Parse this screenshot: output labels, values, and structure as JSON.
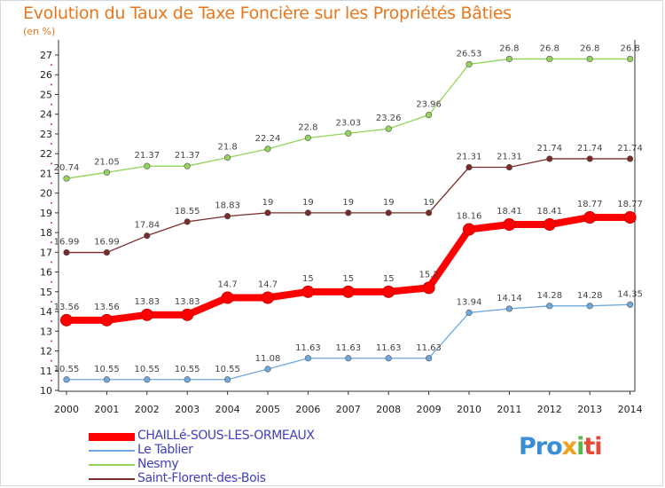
{
  "chart_data": {
    "type": "line",
    "title": "Evolution du Taux de Taxe Foncière sur les Propriétés Bâties",
    "subtitle": "(en %)",
    "x": [
      "2000",
      "2001",
      "2002",
      "2003",
      "2004",
      "2005",
      "2006",
      "2007",
      "2008",
      "2009",
      "2010",
      "2011",
      "2012",
      "2013",
      "2014"
    ],
    "yticks": [
      "10",
      "11",
      "12",
      "13",
      "14",
      "15",
      "16",
      "17",
      "18",
      "19",
      "20",
      "21",
      "22",
      "23",
      "24",
      "25",
      "26",
      "27"
    ],
    "ylim": [
      10,
      27
    ],
    "grid": false,
    "legend_position": "bottom-left",
    "series": [
      {
        "name": "CHAILLé-SOUS-LES-ORMEAUX",
        "color": "#ff0000",
        "emphasized": true,
        "values": [
          13.56,
          13.56,
          13.83,
          13.83,
          14.7,
          14.7,
          15,
          15,
          15,
          15.2,
          18.16,
          18.41,
          18.41,
          18.77,
          18.77
        ],
        "labels": [
          "13.56",
          "13.56",
          "13.83",
          "13.83",
          "14.7",
          "14.7",
          "15",
          "15",
          "15",
          "15.2",
          "18.16",
          "18.41",
          "18.41",
          "18.77",
          "18.77"
        ]
      },
      {
        "name": "Le Tablier",
        "color": "#6fa8dc",
        "emphasized": false,
        "values": [
          10.55,
          10.55,
          10.55,
          10.55,
          10.55,
          11.08,
          11.63,
          11.63,
          11.63,
          11.63,
          13.94,
          14.14,
          14.28,
          14.28,
          14.35
        ],
        "labels": [
          "10.55",
          "10.55",
          "10.55",
          "10.55",
          "10.55",
          "11.08",
          "11.63",
          "11.63",
          "11.63",
          "11.63",
          "13.94",
          "14.14",
          "14.28",
          "14.28",
          "14.35"
        ]
      },
      {
        "name": "Nesmy",
        "color": "#93d35a",
        "emphasized": false,
        "values": [
          20.74,
          21.05,
          21.37,
          21.37,
          21.8,
          22.24,
          22.8,
          23.03,
          23.26,
          23.96,
          26.53,
          26.8,
          26.8,
          26.8,
          26.8
        ],
        "labels": [
          "20.74",
          "21.05",
          "21.37",
          "21.37",
          "21.8",
          "22.24",
          "22.8",
          "23.03",
          "23.26",
          "23.96",
          "26.53",
          "26.8",
          "26.8",
          "26.8",
          "26.8"
        ]
      },
      {
        "name": "Saint-Florent-des-Bois",
        "color": "#7b2a2a",
        "emphasized": false,
        "values": [
          16.99,
          16.99,
          17.84,
          18.55,
          18.83,
          19,
          19,
          19,
          19,
          19,
          21.31,
          21.31,
          21.74,
          21.74,
          21.74
        ],
        "labels": [
          "16.99",
          "16.99",
          "17.84",
          "18.55",
          "18.83",
          "19",
          "19",
          "19",
          "19",
          "19",
          "21.31",
          "21.31",
          "21.74",
          "21.74",
          "21.74"
        ]
      }
    ]
  },
  "logo": {
    "p1": "Pro",
    "p2": "x",
    "p3": "i",
    "p4": "ti"
  }
}
